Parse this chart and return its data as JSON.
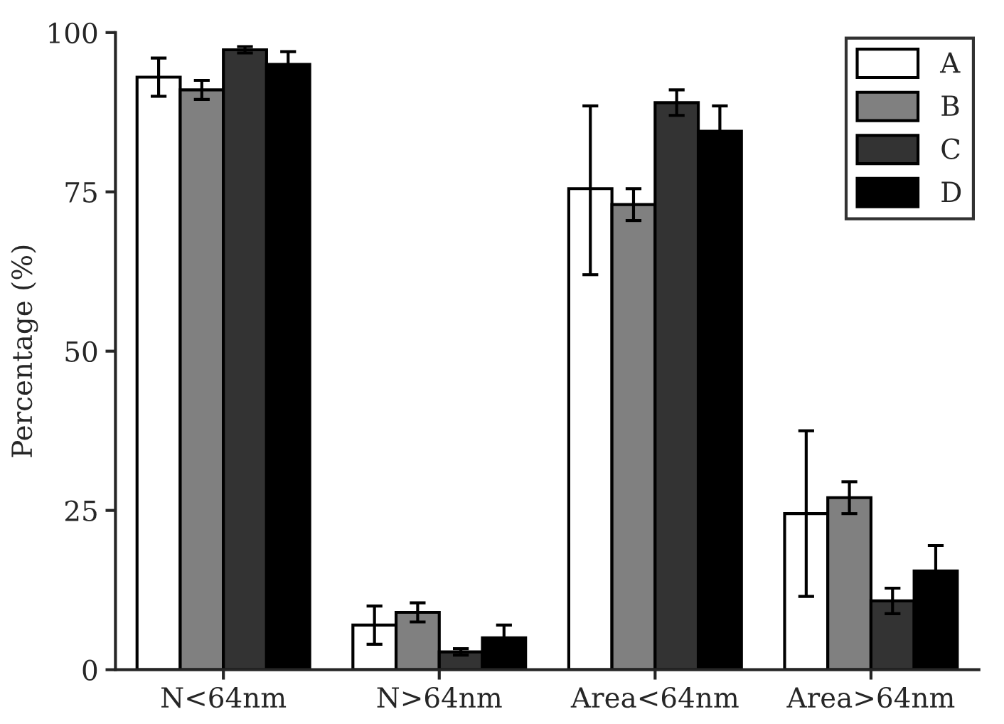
{
  "chart_data": {
    "type": "bar",
    "ylabel": "Percentage (%)",
    "categories": [
      "N<64nm",
      "N>64nm",
      "Area<64nm",
      "Area>64nm"
    ],
    "series": [
      {
        "name": "A",
        "color": "#ffffff",
        "values": [
          93,
          7,
          75.5,
          24.5
        ],
        "errors": [
          3,
          3,
          [
            62,
            88.5
          ],
          [
            11.5,
            37.5
          ]
        ]
      },
      {
        "name": "B",
        "color": "#808080",
        "values": [
          91,
          9,
          73,
          27
        ],
        "errors": [
          1.5,
          1.5,
          2.5,
          2.5
        ]
      },
      {
        "name": "C",
        "color": "#333333",
        "values": [
          97.3,
          2.8,
          89,
          10.8
        ],
        "errors": [
          0.5,
          0.5,
          2,
          2
        ]
      },
      {
        "name": "D",
        "color": "#000000",
        "values": [
          95,
          5,
          84.5,
          15.5
        ],
        "errors": [
          2,
          2,
          4,
          4
        ]
      }
    ],
    "ylim": [
      0,
      100
    ],
    "yticks": [
      0,
      25,
      50,
      75,
      100
    ],
    "grid": false,
    "legend": "top right"
  }
}
